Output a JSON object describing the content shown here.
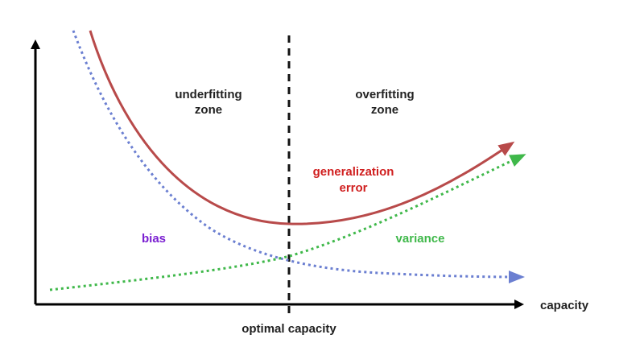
{
  "labels": {
    "underfitting_line1": "underfitting",
    "underfitting_line2": "zone",
    "overfitting_line1": "overfitting",
    "overfitting_line2": "zone",
    "generalization_line1": "generalization",
    "generalization_line2": "error",
    "bias": "bias",
    "variance": "variance",
    "x_axis": "capacity",
    "optimal": "optimal capacity"
  },
  "colors": {
    "axis": "#000000",
    "generalization": "#b84a4a",
    "generalization_text": "#d01f1f",
    "bias": "#6b7fd1",
    "bias_text": "#7a1fd1",
    "variance": "#3fb84a",
    "variance_text": "#3fb84a",
    "optimal_line": "#111111"
  }
}
